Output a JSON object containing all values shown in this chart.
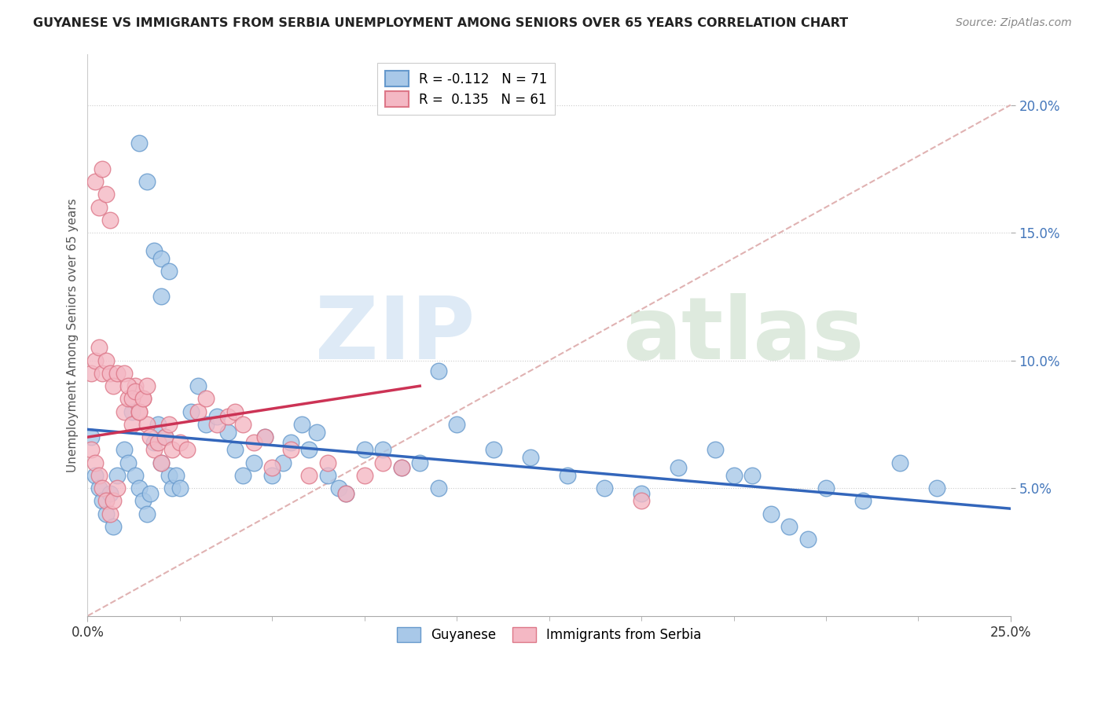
{
  "title": "GUYANESE VS IMMIGRANTS FROM SERBIA UNEMPLOYMENT AMONG SENIORS OVER 65 YEARS CORRELATION CHART",
  "source": "Source: ZipAtlas.com",
  "ylabel": "Unemployment Among Seniors over 65 years",
  "xlim": [
    0,
    0.25
  ],
  "ylim": [
    0.0,
    0.22
  ],
  "xtick_positions": [
    0.0,
    0.25
  ],
  "xticklabels": [
    "0.0%",
    "25.0%"
  ],
  "yticks": [
    0.05,
    0.1,
    0.15,
    0.2
  ],
  "yticklabels": [
    "5.0%",
    "10.0%",
    "15.0%",
    "20.0%"
  ],
  "grid_yticks": [
    0.05,
    0.1,
    0.15,
    0.2
  ],
  "legend_entries": [
    {
      "label": "R = -0.112   N = 71",
      "color": "#a8c8e8"
    },
    {
      "label": "R =  0.135   N = 61",
      "color": "#f4b8c4"
    }
  ],
  "blue_color": "#a8c8e8",
  "pink_color": "#f4b8c4",
  "blue_edge": "#6699cc",
  "pink_edge": "#dd7788",
  "trend_blue": "#3366bb",
  "trend_pink": "#cc3355",
  "diag_color": "#ddaaaa",
  "watermark_zip_color": "#dde8f0",
  "watermark_atlas_color": "#d0e8d0",
  "guyanese_x": [
    0.001,
    0.002,
    0.003,
    0.004,
    0.005,
    0.006,
    0.007,
    0.008,
    0.01,
    0.011,
    0.012,
    0.013,
    0.014,
    0.015,
    0.016,
    0.017,
    0.018,
    0.019,
    0.02,
    0.021,
    0.022,
    0.023,
    0.024,
    0.025,
    0.028,
    0.03,
    0.032,
    0.035,
    0.038,
    0.04,
    0.042,
    0.045,
    0.048,
    0.05,
    0.053,
    0.055,
    0.058,
    0.06,
    0.062,
    0.065,
    0.068,
    0.07,
    0.075,
    0.08,
    0.085,
    0.09,
    0.095,
    0.1,
    0.11,
    0.12,
    0.13,
    0.14,
    0.15,
    0.16,
    0.17,
    0.175,
    0.18,
    0.185,
    0.19,
    0.195,
    0.2,
    0.21,
    0.22,
    0.23,
    0.014,
    0.016,
    0.018,
    0.02,
    0.022,
    0.095,
    0.02
  ],
  "guyanese_y": [
    0.07,
    0.055,
    0.05,
    0.045,
    0.04,
    0.048,
    0.035,
    0.055,
    0.065,
    0.06,
    0.08,
    0.055,
    0.05,
    0.045,
    0.04,
    0.048,
    0.068,
    0.075,
    0.06,
    0.07,
    0.055,
    0.05,
    0.055,
    0.05,
    0.08,
    0.09,
    0.075,
    0.078,
    0.072,
    0.065,
    0.055,
    0.06,
    0.07,
    0.055,
    0.06,
    0.068,
    0.075,
    0.065,
    0.072,
    0.055,
    0.05,
    0.048,
    0.065,
    0.065,
    0.058,
    0.06,
    0.05,
    0.075,
    0.065,
    0.062,
    0.055,
    0.05,
    0.048,
    0.058,
    0.065,
    0.055,
    0.055,
    0.04,
    0.035,
    0.03,
    0.05,
    0.045,
    0.06,
    0.05,
    0.185,
    0.17,
    0.143,
    0.14,
    0.135,
    0.096,
    0.125
  ],
  "serbia_x": [
    0.001,
    0.002,
    0.003,
    0.004,
    0.005,
    0.006,
    0.007,
    0.008,
    0.01,
    0.011,
    0.012,
    0.013,
    0.014,
    0.015,
    0.016,
    0.017,
    0.018,
    0.019,
    0.02,
    0.021,
    0.022,
    0.023,
    0.025,
    0.027,
    0.03,
    0.032,
    0.035,
    0.038,
    0.04,
    0.042,
    0.045,
    0.048,
    0.05,
    0.055,
    0.06,
    0.065,
    0.07,
    0.075,
    0.08,
    0.085,
    0.001,
    0.002,
    0.003,
    0.004,
    0.005,
    0.006,
    0.007,
    0.008,
    0.01,
    0.011,
    0.012,
    0.013,
    0.014,
    0.015,
    0.016,
    0.002,
    0.003,
    0.004,
    0.005,
    0.006,
    0.15
  ],
  "serbia_y": [
    0.065,
    0.06,
    0.055,
    0.05,
    0.045,
    0.04,
    0.045,
    0.05,
    0.08,
    0.085,
    0.075,
    0.09,
    0.08,
    0.085,
    0.075,
    0.07,
    0.065,
    0.068,
    0.06,
    0.07,
    0.075,
    0.065,
    0.068,
    0.065,
    0.08,
    0.085,
    0.075,
    0.078,
    0.08,
    0.075,
    0.068,
    0.07,
    0.058,
    0.065,
    0.055,
    0.06,
    0.048,
    0.055,
    0.06,
    0.058,
    0.095,
    0.1,
    0.105,
    0.095,
    0.1,
    0.095,
    0.09,
    0.095,
    0.095,
    0.09,
    0.085,
    0.088,
    0.08,
    0.085,
    0.09,
    0.17,
    0.16,
    0.175,
    0.165,
    0.155,
    0.045
  ],
  "blue_trend_x": [
    0.0,
    0.25
  ],
  "blue_trend_y": [
    0.073,
    0.042
  ],
  "pink_trend_x": [
    0.0,
    0.09
  ],
  "pink_trend_y": [
    0.07,
    0.09
  ]
}
